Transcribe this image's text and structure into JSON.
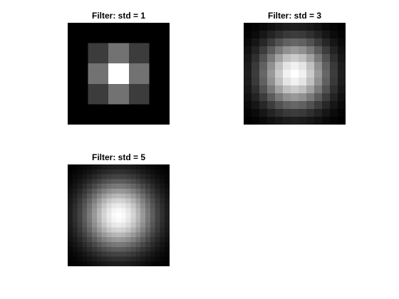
{
  "chart_data": [
    {
      "type": "heatmap",
      "title": "Filter: std = 1",
      "std": 1,
      "size": [
        5,
        5
      ],
      "colormap": "gray",
      "axes_visible": false,
      "values": [
        [
          0.0,
          0.0,
          0.0,
          0.0,
          0.0
        ],
        [
          0.0,
          0.237,
          0.447,
          0.237,
          0.0
        ],
        [
          0.0,
          0.447,
          1.0,
          0.447,
          0.0
        ],
        [
          0.0,
          0.237,
          0.447,
          0.237,
          0.0
        ],
        [
          0.0,
          0.0,
          0.0,
          0.0,
          0.0
        ]
      ]
    },
    {
      "type": "heatmap",
      "title": "Filter: std = 3",
      "std": 3,
      "size": [
        13,
        13
      ],
      "colormap": "gray",
      "axes_visible": false,
      "kernel_normalized_to_peak": true
    },
    {
      "type": "heatmap",
      "title": "Filter: std = 5",
      "std": 5,
      "size": [
        21,
        21
      ],
      "colormap": "gray",
      "axes_visible": false,
      "kernel_normalized_to_peak": true
    }
  ]
}
